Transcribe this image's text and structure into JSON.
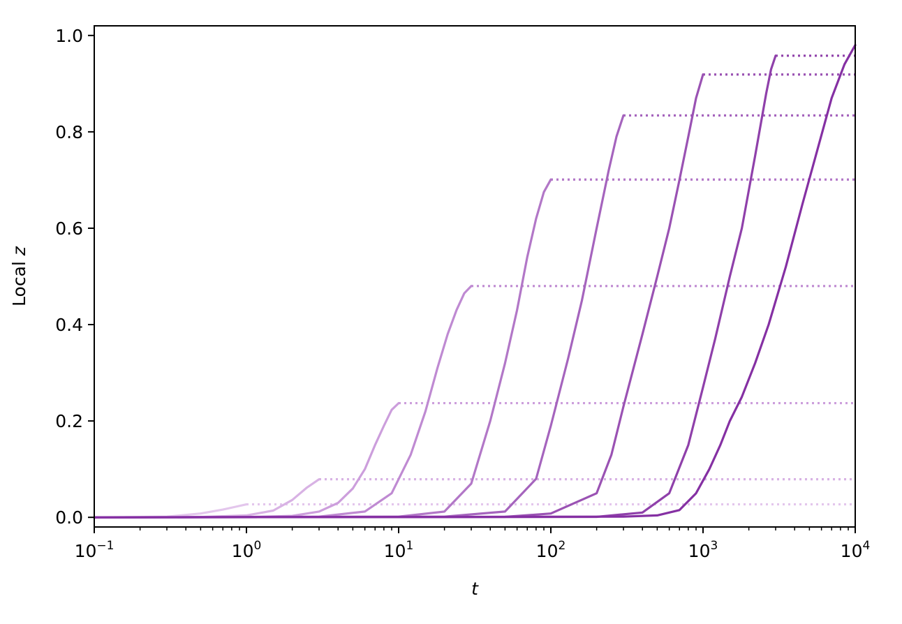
{
  "chart_data": {
    "type": "line",
    "xscale": "log",
    "xlabel": "t",
    "ylabel_text": "Local ",
    "ylabel_var": "z",
    "xlim": [
      0.1,
      10000
    ],
    "ylim": [
      -0.02,
      1.02
    ],
    "x_ticks": [
      {
        "value": 0.1,
        "base": "10",
        "exp": "−1"
      },
      {
        "value": 1,
        "base": "10",
        "exp": "0"
      },
      {
        "value": 10,
        "base": "10",
        "exp": "1"
      },
      {
        "value": 100,
        "base": "10",
        "exp": "2"
      },
      {
        "value": 1000,
        "base": "10",
        "exp": "3"
      },
      {
        "value": 10000,
        "base": "10",
        "exp": "4"
      }
    ],
    "y_ticks": [
      {
        "value": 0.0,
        "label": "0.0"
      },
      {
        "value": 0.2,
        "label": "0.2"
      },
      {
        "value": 0.4,
        "label": "0.4"
      },
      {
        "value": 0.6,
        "label": "0.6"
      },
      {
        "value": 0.8,
        "label": "0.8"
      },
      {
        "value": 1.0,
        "label": "1.0"
      }
    ],
    "grid": false,
    "legend": "none",
    "series": [
      {
        "t_end": 1,
        "plateau": 0.027,
        "color": "#e3c6ec",
        "style": "solid curve then dotted plateau",
        "points": [
          [
            0.1,
            0
          ],
          [
            0.3,
            0.0015
          ],
          [
            0.5,
            0.008
          ],
          [
            0.7,
            0.016
          ],
          [
            0.85,
            0.022
          ],
          [
            1,
            0.027
          ]
        ]
      },
      {
        "t_end": 3,
        "plateau": 0.079,
        "color": "#d8b2e4",
        "style": "solid curve then dotted plateau",
        "points": [
          [
            0.1,
            0
          ],
          [
            0.5,
            0.0007
          ],
          [
            1,
            0.004
          ],
          [
            1.5,
            0.014
          ],
          [
            2,
            0.036
          ],
          [
            2.5,
            0.062
          ],
          [
            3,
            0.079
          ]
        ]
      },
      {
        "t_end": 10,
        "plateau": 0.237,
        "color": "#cc9edc",
        "style": "solid curve then dotted plateau",
        "points": [
          [
            0.1,
            0
          ],
          [
            1,
            0.0005
          ],
          [
            2,
            0.003
          ],
          [
            3,
            0.012
          ],
          [
            4,
            0.03
          ],
          [
            5,
            0.06
          ],
          [
            6,
            0.1
          ],
          [
            7,
            0.15
          ],
          [
            8,
            0.19
          ],
          [
            9,
            0.223
          ],
          [
            10,
            0.237
          ]
        ]
      },
      {
        "t_end": 30,
        "plateau": 0.48,
        "color": "#bf8ad2",
        "style": "solid curve then dotted plateau",
        "points": [
          [
            0.1,
            0
          ],
          [
            3,
            0.0015
          ],
          [
            6,
            0.012
          ],
          [
            9,
            0.05
          ],
          [
            12,
            0.13
          ],
          [
            15,
            0.22
          ],
          [
            18,
            0.31
          ],
          [
            21,
            0.38
          ],
          [
            24,
            0.43
          ],
          [
            27,
            0.465
          ],
          [
            30,
            0.48
          ]
        ]
      },
      {
        "t_end": 100,
        "plateau": 0.701,
        "color": "#b277c7",
        "style": "solid curve then dotted plateau",
        "points": [
          [
            0.1,
            0
          ],
          [
            10,
            0.0015
          ],
          [
            20,
            0.012
          ],
          [
            30,
            0.07
          ],
          [
            40,
            0.2
          ],
          [
            50,
            0.32
          ],
          [
            60,
            0.43
          ],
          [
            70,
            0.54
          ],
          [
            80,
            0.62
          ],
          [
            90,
            0.675
          ],
          [
            100,
            0.701
          ]
        ]
      },
      {
        "t_end": 300,
        "plateau": 0.834,
        "color": "#a564bd",
        "style": "solid curve then dotted plateau",
        "points": [
          [
            0.1,
            0
          ],
          [
            20,
            0.0015
          ],
          [
            50,
            0.012
          ],
          [
            80,
            0.08
          ],
          [
            100,
            0.19
          ],
          [
            130,
            0.33
          ],
          [
            160,
            0.45
          ],
          [
            200,
            0.6
          ],
          [
            240,
            0.72
          ],
          [
            270,
            0.79
          ],
          [
            300,
            0.834
          ]
        ]
      },
      {
        "t_end": 1000,
        "plateau": 0.919,
        "color": "#9a52b3",
        "style": "solid curve then dotted plateau",
        "points": [
          [
            0.1,
            0
          ],
          [
            50,
            0.001
          ],
          [
            100,
            0.008
          ],
          [
            200,
            0.05
          ],
          [
            250,
            0.13
          ],
          [
            300,
            0.23
          ],
          [
            400,
            0.38
          ],
          [
            500,
            0.5
          ],
          [
            600,
            0.6
          ],
          [
            700,
            0.7
          ],
          [
            800,
            0.79
          ],
          [
            900,
            0.87
          ],
          [
            1000,
            0.919
          ]
        ]
      },
      {
        "t_end": 3000,
        "plateau": 0.958,
        "color": "#8f40aa",
        "style": "solid curve then dotted plateau",
        "points": [
          [
            0.1,
            0
          ],
          [
            200,
            0.001
          ],
          [
            400,
            0.01
          ],
          [
            600,
            0.05
          ],
          [
            800,
            0.15
          ],
          [
            1000,
            0.27
          ],
          [
            1200,
            0.37
          ],
          [
            1500,
            0.5
          ],
          [
            1800,
            0.6
          ],
          [
            2200,
            0.75
          ],
          [
            2600,
            0.88
          ],
          [
            2800,
            0.93
          ],
          [
            3000,
            0.958
          ]
        ]
      },
      {
        "t_end": 10000,
        "plateau": 0.98,
        "color": "#8530a3",
        "style": "solid",
        "points": [
          [
            0.1,
            0
          ],
          [
            300,
            0.0015
          ],
          [
            500,
            0.004
          ],
          [
            700,
            0.015
          ],
          [
            900,
            0.05
          ],
          [
            1100,
            0.1
          ],
          [
            1300,
            0.15
          ],
          [
            1500,
            0.2
          ],
          [
            1800,
            0.25
          ],
          [
            2200,
            0.32
          ],
          [
            2700,
            0.4
          ],
          [
            3500,
            0.52
          ],
          [
            4500,
            0.65
          ],
          [
            5500,
            0.75
          ],
          [
            7000,
            0.87
          ],
          [
            8500,
            0.94
          ],
          [
            10000,
            0.98
          ]
        ]
      }
    ]
  }
}
